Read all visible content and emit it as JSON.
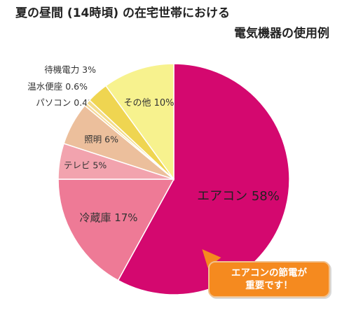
{
  "title": {
    "line1": "夏の昼間 (14時頃) の在宅世帯における",
    "line2": "電気機器の使用例"
  },
  "chart_data": {
    "type": "pie",
    "slices": [
      {
        "label": "エアコン",
        "value": 58,
        "display": "エアコン 58%",
        "color": "#d4086f"
      },
      {
        "label": "冷蔵庫",
        "value": 17,
        "display": "冷蔵庫 17%",
        "color": "#ee7a96"
      },
      {
        "label": "テレビ",
        "value": 5,
        "display": "テレビ 5%",
        "color": "#f2a3ae"
      },
      {
        "label": "照明",
        "value": 6,
        "display": "照明 6%",
        "color": "#ecbf9c"
      },
      {
        "label": "パソコン",
        "value": 0.4,
        "display": "パソコン 0.4%",
        "color": "#f6d998"
      },
      {
        "label": "温水便座",
        "value": 0.6,
        "display": "温水便座 0.6%",
        "color": "#f3dc8a"
      },
      {
        "label": "待機電力",
        "value": 3,
        "display": "待機電力 3%",
        "color": "#efd551"
      },
      {
        "label": "その他",
        "value": 10,
        "display": "その他 10%",
        "color": "#f7f28e"
      }
    ]
  },
  "callout": {
    "line1": "エアコンの節電が",
    "line2": "重要です！"
  }
}
